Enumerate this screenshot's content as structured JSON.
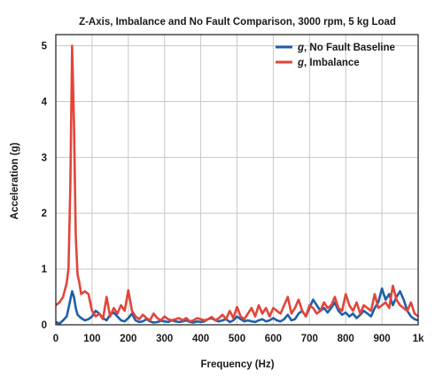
{
  "chart_data": {
    "type": "line",
    "title": "Z-Axis, Imbalance and No Fault Comparison, 3000 rpm, 5 kg Load",
    "xlabel": "Frequency (Hz)",
    "ylabel": "Acceleration (g)",
    "xlim": [
      0,
      1000
    ],
    "ylim": [
      0,
      5.2
    ],
    "xticks": [
      0,
      100,
      200,
      300,
      400,
      500,
      600,
      700,
      800,
      900,
      1000
    ],
    "xtick_labels": [
      "0",
      "100",
      "200",
      "300",
      "400",
      "500",
      "600",
      "700",
      "800",
      "900",
      "1k"
    ],
    "yticks": [
      0,
      1,
      2,
      3,
      4,
      5
    ],
    "ytick_labels": [
      "0",
      "1",
      "2",
      "3",
      "4",
      "5"
    ],
    "grid": true,
    "legend_position": "top-right",
    "series": [
      {
        "name": "No Fault Baseline",
        "name_prefix": "g",
        "color": "#1f5fa8",
        "x": [
          0,
          10,
          20,
          30,
          40,
          45,
          50,
          55,
          60,
          70,
          80,
          90,
          100,
          110,
          120,
          130,
          140,
          150,
          160,
          170,
          180,
          190,
          200,
          210,
          220,
          230,
          240,
          250,
          260,
          270,
          280,
          290,
          300,
          310,
          320,
          330,
          340,
          350,
          360,
          370,
          380,
          390,
          400,
          410,
          420,
          430,
          440,
          450,
          460,
          470,
          480,
          490,
          500,
          510,
          520,
          530,
          540,
          550,
          560,
          570,
          580,
          590,
          600,
          610,
          620,
          630,
          640,
          650,
          660,
          670,
          680,
          690,
          700,
          710,
          720,
          730,
          740,
          750,
          760,
          770,
          780,
          790,
          800,
          810,
          820,
          830,
          840,
          850,
          860,
          870,
          880,
          890,
          900,
          910,
          920,
          930,
          940,
          950,
          960,
          970,
          980,
          990,
          1000
        ],
        "y": [
          0.05,
          0.02,
          0.08,
          0.15,
          0.45,
          0.6,
          0.5,
          0.3,
          0.18,
          0.12,
          0.08,
          0.1,
          0.15,
          0.25,
          0.2,
          0.12,
          0.08,
          0.18,
          0.22,
          0.15,
          0.08,
          0.06,
          0.12,
          0.2,
          0.08,
          0.05,
          0.06,
          0.1,
          0.06,
          0.04,
          0.05,
          0.07,
          0.06,
          0.05,
          0.08,
          0.06,
          0.05,
          0.06,
          0.08,
          0.05,
          0.04,
          0.06,
          0.05,
          0.06,
          0.1,
          0.12,
          0.08,
          0.06,
          0.08,
          0.1,
          0.05,
          0.08,
          0.15,
          0.1,
          0.06,
          0.08,
          0.06,
          0.05,
          0.08,
          0.1,
          0.06,
          0.08,
          0.12,
          0.08,
          0.06,
          0.1,
          0.18,
          0.08,
          0.1,
          0.2,
          0.25,
          0.15,
          0.3,
          0.45,
          0.35,
          0.25,
          0.3,
          0.22,
          0.3,
          0.4,
          0.25,
          0.18,
          0.22,
          0.15,
          0.2,
          0.12,
          0.18,
          0.25,
          0.2,
          0.15,
          0.3,
          0.4,
          0.65,
          0.45,
          0.55,
          0.35,
          0.5,
          0.6,
          0.45,
          0.25,
          0.15,
          0.1,
          0.08
        ]
      },
      {
        "name": "Imbalance",
        "name_prefix": "g",
        "color": "#e2453a",
        "x": [
          0,
          10,
          20,
          30,
          35,
          40,
          45,
          50,
          55,
          60,
          65,
          70,
          80,
          90,
          100,
          110,
          120,
          130,
          140,
          150,
          160,
          170,
          180,
          190,
          200,
          210,
          220,
          230,
          240,
          250,
          260,
          270,
          280,
          290,
          300,
          310,
          320,
          330,
          340,
          350,
          360,
          370,
          380,
          390,
          400,
          410,
          420,
          430,
          440,
          450,
          460,
          470,
          480,
          490,
          500,
          510,
          520,
          530,
          540,
          550,
          560,
          570,
          580,
          590,
          600,
          610,
          620,
          630,
          640,
          650,
          660,
          670,
          680,
          690,
          700,
          710,
          720,
          730,
          740,
          750,
          760,
          770,
          780,
          790,
          800,
          810,
          820,
          830,
          840,
          850,
          860,
          870,
          880,
          890,
          900,
          910,
          920,
          930,
          940,
          950,
          960,
          970,
          980,
          990,
          1000
        ],
        "y": [
          0.35,
          0.4,
          0.5,
          0.75,
          1.0,
          2.5,
          5.0,
          3.6,
          1.6,
          0.9,
          0.75,
          0.55,
          0.6,
          0.55,
          0.25,
          0.15,
          0.2,
          0.1,
          0.5,
          0.15,
          0.3,
          0.2,
          0.35,
          0.25,
          0.62,
          0.25,
          0.15,
          0.1,
          0.18,
          0.12,
          0.08,
          0.2,
          0.12,
          0.08,
          0.15,
          0.1,
          0.08,
          0.1,
          0.12,
          0.08,
          0.12,
          0.06,
          0.08,
          0.12,
          0.1,
          0.08,
          0.1,
          0.14,
          0.08,
          0.12,
          0.18,
          0.1,
          0.25,
          0.12,
          0.32,
          0.15,
          0.1,
          0.2,
          0.3,
          0.15,
          0.35,
          0.2,
          0.3,
          0.15,
          0.3,
          0.25,
          0.2,
          0.35,
          0.5,
          0.2,
          0.3,
          0.45,
          0.25,
          0.15,
          0.35,
          0.3,
          0.2,
          0.25,
          0.4,
          0.3,
          0.35,
          0.5,
          0.3,
          0.25,
          0.55,
          0.35,
          0.25,
          0.4,
          0.2,
          0.35,
          0.3,
          0.25,
          0.55,
          0.3,
          0.35,
          0.4,
          0.3,
          0.7,
          0.45,
          0.35,
          0.3,
          0.25,
          0.4,
          0.2,
          0.15
        ]
      }
    ]
  }
}
